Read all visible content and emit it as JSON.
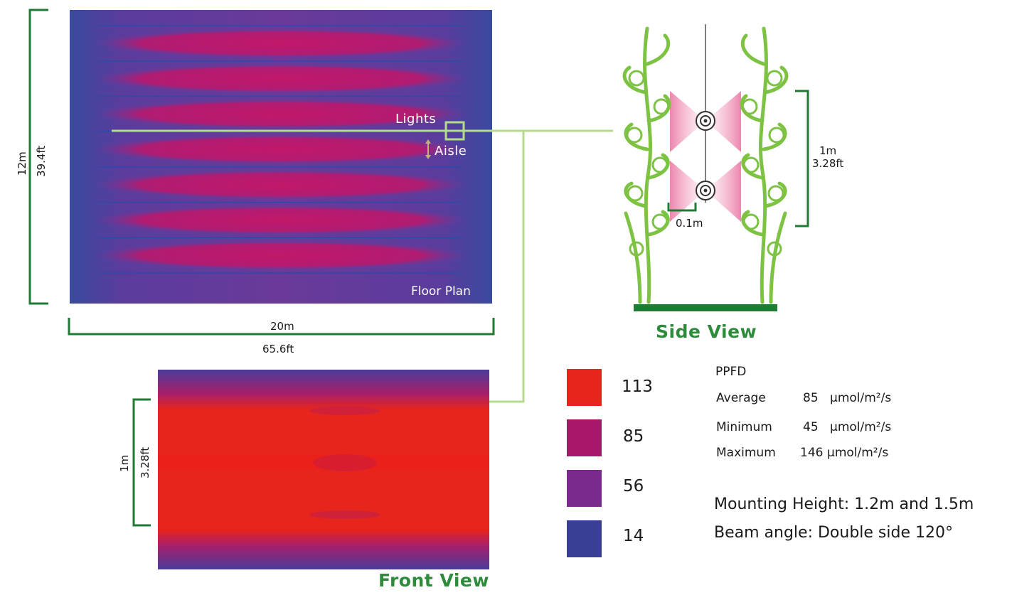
{
  "floor_plan": {
    "label": "Floor Plan",
    "lights_label": "Lights",
    "aisle_label": "Aisle",
    "width_m": "20m",
    "width_ft": "65.6ft",
    "height_m": "12m",
    "height_ft": "39.4ft",
    "rows": 7
  },
  "side_view": {
    "title": "Side View",
    "height_m": "1m",
    "height_ft": "3.28ft",
    "distance": "0.1m"
  },
  "front_view": {
    "title": "Front View",
    "height_m": "1m",
    "height_ft": "3.28ft"
  },
  "legend": [
    {
      "value": "113",
      "color": "#e8251c"
    },
    {
      "value": "85",
      "color": "#a8176a"
    },
    {
      "value": "56",
      "color": "#7a2a8c"
    },
    {
      "value": "14",
      "color": "#3a3f96"
    }
  ],
  "ppfd": {
    "title": "PPFD",
    "rows": [
      {
        "label": "Average",
        "value": "85",
        "unit": "μmol/m²/s"
      },
      {
        "label": "Minimum",
        "value": "45",
        "unit": "μmol/m²/s"
      },
      {
        "label": "Maximum",
        "value": "146",
        "unit": "μmol/m²/s"
      }
    ]
  },
  "mounting": {
    "label": "Mounting Height:",
    "value": "1.2m and 1.5m"
  },
  "beam": {
    "label": "Beam angle:",
    "value": "Double side 120°"
  },
  "colors": {
    "bracket_green": "#1f7a34",
    "line_green": "#b5dc8c",
    "plant_green": "#7dc243"
  }
}
